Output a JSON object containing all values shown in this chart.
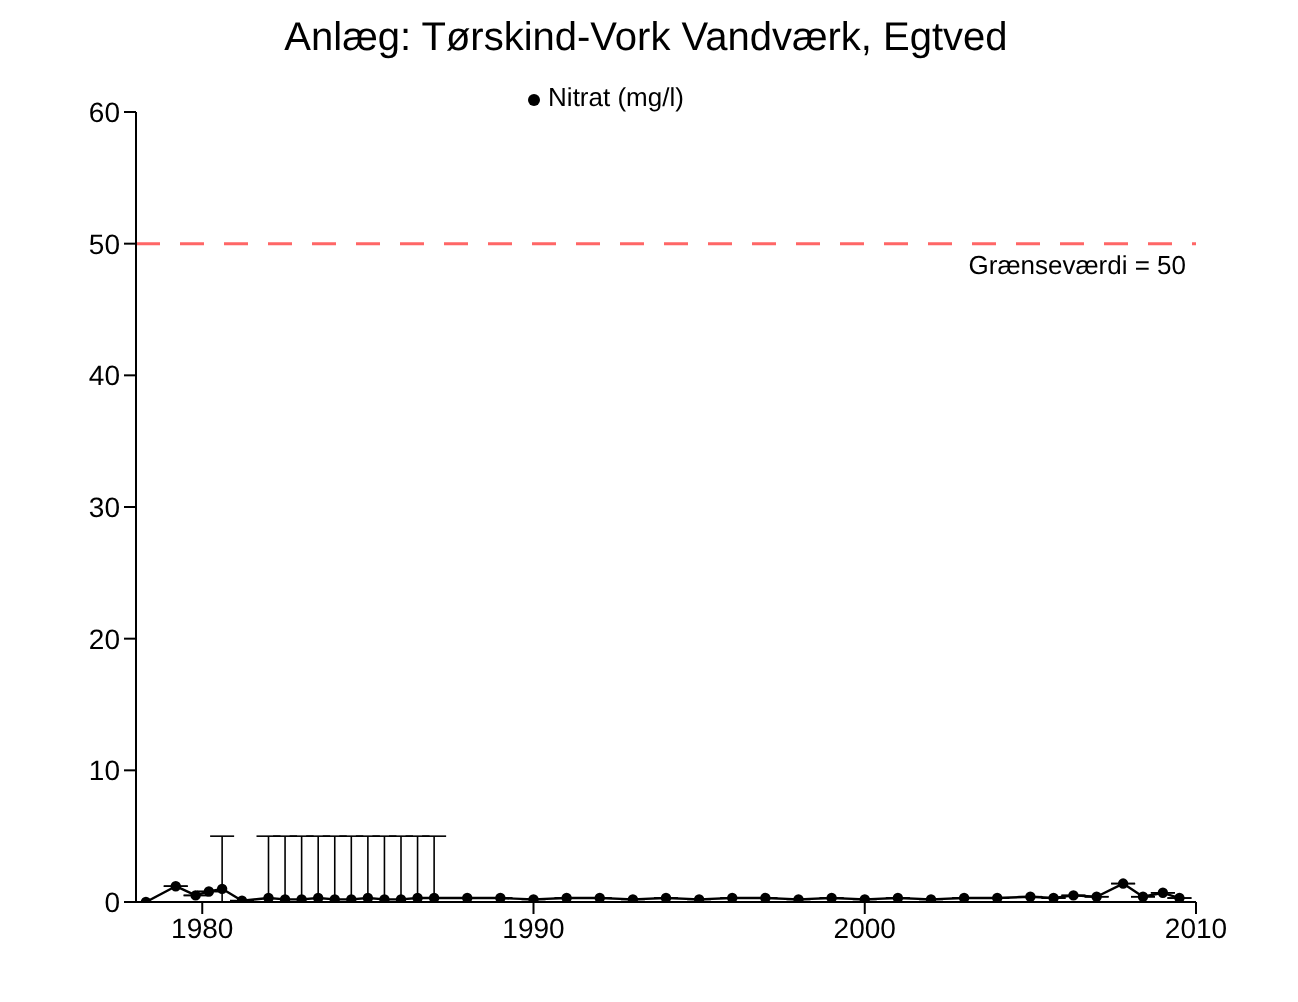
{
  "chart_data": {
    "type": "line",
    "title": "Anlæg: Tørskind-Vork Vandværk, Egtved",
    "x": [
      1978.3,
      1979.2,
      1979.8,
      1980.2,
      1980.6,
      1981.2,
      1982.0,
      1982.5,
      1983.0,
      1983.5,
      1984.0,
      1984.5,
      1985.0,
      1985.5,
      1986.0,
      1986.5,
      1987.0,
      1988.0,
      1989.0,
      1990.0,
      1991.0,
      1992.0,
      1993.0,
      1994.0,
      1995.0,
      1996.0,
      1997.0,
      1998.0,
      1999.0,
      2000.0,
      2001.0,
      2002.0,
      2003.0,
      2004.0,
      2005.0,
      2005.7,
      2006.3,
      2007.0,
      2007.8,
      2008.4,
      2009.0,
      2009.5
    ],
    "series": [
      {
        "name": "Nitrat (mg/l)",
        "color": "#000000",
        "values": [
          0,
          1.2,
          0.5,
          0.8,
          1.0,
          0.1,
          0.3,
          0.2,
          0.2,
          0.3,
          0.2,
          0.2,
          0.3,
          0.2,
          0.2,
          0.3,
          0.3,
          0.3,
          0.3,
          0.2,
          0.3,
          0.3,
          0.2,
          0.3,
          0.2,
          0.3,
          0.3,
          0.2,
          0.3,
          0.2,
          0.3,
          0.2,
          0.3,
          0.3,
          0.4,
          0.3,
          0.5,
          0.4,
          1.4,
          0.4,
          0.7,
          0.3
        ],
        "errors": [
          null,
          null,
          null,
          null,
          [
            0,
            5
          ],
          null,
          [
            0,
            5
          ],
          [
            0,
            5
          ],
          [
            0,
            5
          ],
          [
            0,
            5
          ],
          [
            0,
            5
          ],
          [
            0,
            5
          ],
          [
            0,
            5
          ],
          [
            0,
            5
          ],
          [
            0,
            5
          ],
          [
            0,
            5
          ],
          [
            0,
            5
          ],
          null,
          null,
          null,
          null,
          null,
          null,
          null,
          null,
          null,
          null,
          null,
          null,
          null,
          null,
          null,
          null,
          null,
          null,
          null,
          null,
          null,
          null,
          null,
          null,
          null
        ]
      }
    ],
    "xlim": [
      1978,
      2010
    ],
    "xticks": [
      1980,
      1990,
      2000,
      2010
    ],
    "ylim": [
      0,
      60
    ],
    "yticks": [
      0,
      10,
      20,
      30,
      40,
      50,
      60
    ],
    "marker": "circle",
    "legend": "top",
    "grid": false,
    "ref_lines": [
      {
        "axis": "y",
        "value": 50,
        "label": "Grænseværdi = 50",
        "color": "#ff6666",
        "line_style": "dashed"
      }
    ]
  }
}
